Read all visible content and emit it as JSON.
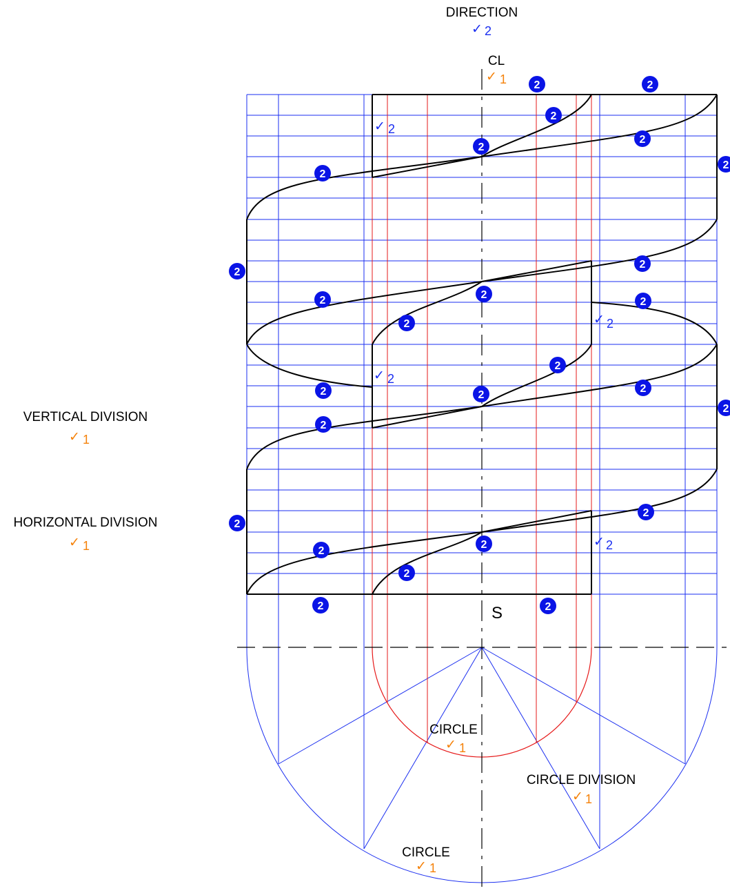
{
  "labels": {
    "direction": "DIRECTION",
    "cl": "CL",
    "vertical_division": "VERTICAL DIVISION",
    "horizontal_division": "HORIZONTAL DIVISION",
    "s": "S",
    "circle_inner": "CIRCLE",
    "circle_division": "CIRCLE DIVISION",
    "circle_outer": "CIRCLE"
  },
  "marks": {
    "tick": "✓",
    "one": "1",
    "two": "2"
  },
  "badge": {
    "text": "2",
    "color": "#0a14e6"
  },
  "colors": {
    "outline": "#000000",
    "grid_blue": "#1a2ef0",
    "grid_red": "#e61919",
    "check_orange": "#f5820a",
    "check_blue": "#1a2ef0"
  }
}
